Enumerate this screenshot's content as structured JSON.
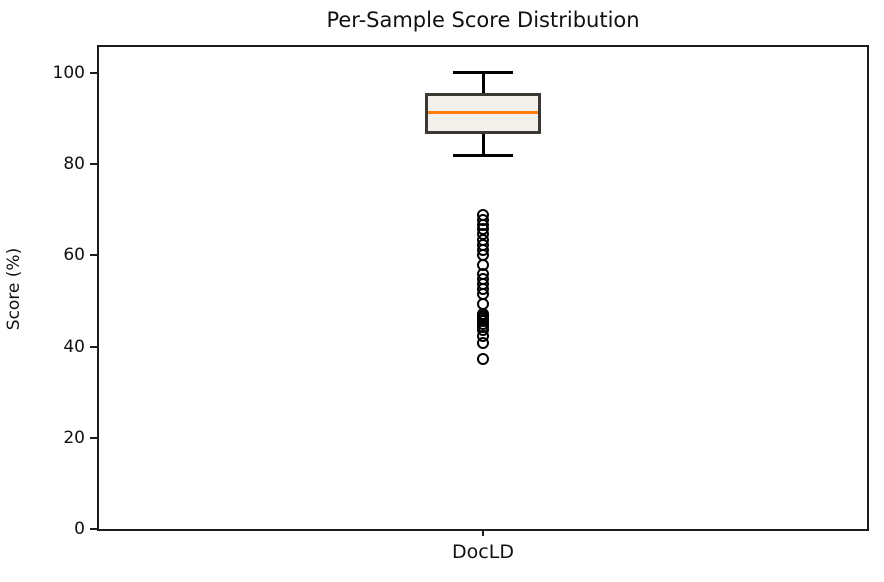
{
  "chart_data": {
    "type": "boxplot",
    "title": "Per-Sample Score Distribution",
    "ylabel": "Score (%)",
    "xlabel": "",
    "categories": [
      "DocLD"
    ],
    "yticks": [
      0,
      20,
      40,
      60,
      80,
      100
    ],
    "ylim": [
      0,
      105.7
    ],
    "grid": false,
    "legend": false,
    "series": [
      {
        "name": "DocLD",
        "whisker_low": 82,
        "q1": 86.6,
        "median": 91.4,
        "q3": 95.7,
        "whisker_high": 100,
        "outliers": [
          68.9,
          67.8,
          66.7,
          65.7,
          64.6,
          63.3,
          62.2,
          61.1,
          60.0,
          58.0,
          55.9,
          54.8,
          53.7,
          52.6,
          51.5,
          49.3,
          47.2,
          46.7,
          46.3,
          45.9,
          45.7,
          45.0,
          44.3,
          43.7,
          42.4,
          40.7,
          37.2
        ]
      }
    ],
    "colors": {
      "median": "#ff7f0e",
      "box_fill": "#f2f1ec",
      "box_edge": "#3c3935",
      "whisker": "#000000",
      "flier_edge": "#000000",
      "spine": "#1c1c1c",
      "text": "#111111",
      "background": "#ffffff"
    }
  }
}
